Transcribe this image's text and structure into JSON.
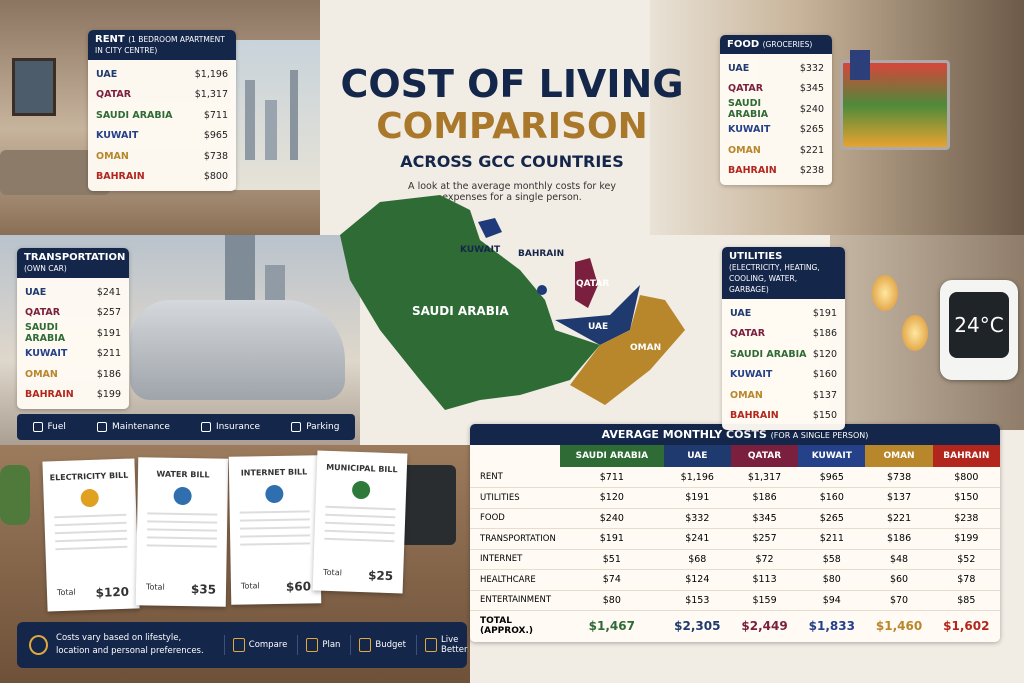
{
  "header": {
    "title": "COST OF LIVING",
    "title2": "COMPARISON",
    "subtitle": "ACROSS GCC COUNTRIES",
    "description": "A look at the average monthly costs for key expenses for a single person."
  },
  "panels": [
    {
      "title": "RENT",
      "note": "(1 BEDROOM APARTMENT IN CITY CENTRE)",
      "rows": [
        [
          "UAE",
          "$1,196"
        ],
        [
          "QATAR",
          "$1,317"
        ],
        [
          "SAUDI ARABIA",
          "$711"
        ],
        [
          "KUWAIT",
          "$965"
        ],
        [
          "OMAN",
          "$738"
        ],
        [
          "BAHRAIN",
          "$800"
        ]
      ]
    },
    {
      "title": "FOOD",
      "note": "(GROCERIES)",
      "rows": [
        [
          "UAE",
          "$332"
        ],
        [
          "QATAR",
          "$345"
        ],
        [
          "SAUDI ARABIA",
          "$240"
        ],
        [
          "KUWAIT",
          "$265"
        ],
        [
          "OMAN",
          "$221"
        ],
        [
          "BAHRAIN",
          "$238"
        ]
      ]
    },
    {
      "title": "TRANSPORTATION",
      "note": "(OWN CAR)",
      "rows": [
        [
          "UAE",
          "$241"
        ],
        [
          "QATAR",
          "$257"
        ],
        [
          "SAUDI ARABIA",
          "$191"
        ],
        [
          "KUWAIT",
          "$211"
        ],
        [
          "OMAN",
          "$186"
        ],
        [
          "BAHRAIN",
          "$199"
        ]
      ]
    },
    {
      "title": "UTILITIES",
      "note": "(ELECTRICITY, HEATING, COOLING, WATER, GARBAGE)",
      "rows": [
        [
          "UAE",
          "$191"
        ],
        [
          "QATAR",
          "$186"
        ],
        [
          "SAUDI ARABIA",
          "$120"
        ],
        [
          "KUWAIT",
          "$160"
        ],
        [
          "OMAN",
          "$137"
        ],
        [
          "BAHRAIN",
          "$150"
        ]
      ]
    }
  ],
  "transport_items": [
    "Fuel",
    "Maintenance",
    "Insurance",
    "Parking"
  ],
  "map_labels": [
    "KUWAIT",
    "BAHRAIN",
    "QATAR",
    "SAUDI ARABIA",
    "UAE",
    "OMAN"
  ],
  "thermostat": "24°C",
  "bills": [
    {
      "title": "ELECTRICITY BILL",
      "total": "Total",
      "amount": "$120"
    },
    {
      "title": "WATER BILL",
      "total": "Total",
      "amount": "$35"
    },
    {
      "title": "INTERNET BILL",
      "total": "Total",
      "amount": "$60"
    },
    {
      "title": "MUNICIPAL BILL",
      "total": "Total",
      "amount": "$25"
    }
  ],
  "footer": {
    "note": "Costs vary based on lifestyle, location and personal preferences.",
    "actions": [
      "Compare",
      "Plan",
      "Budget",
      "Live Better"
    ]
  },
  "table": {
    "title": "AVERAGE MONTHLY COSTS",
    "note": "(FOR A SINGLE PERSON)",
    "columns": [
      "SAUDI ARABIA",
      "UAE",
      "QATAR",
      "KUWAIT",
      "OMAN",
      "BAHRAIN"
    ],
    "rows": [
      {
        "label": "RENT",
        "cells": [
          "$711",
          "$1,196",
          "$1,317",
          "$965",
          "$738",
          "$800"
        ]
      },
      {
        "label": "UTILITIES",
        "cells": [
          "$120",
          "$191",
          "$186",
          "$160",
          "$137",
          "$150"
        ]
      },
      {
        "label": "FOOD",
        "cells": [
          "$240",
          "$332",
          "$345",
          "$265",
          "$221",
          "$238"
        ]
      },
      {
        "label": "TRANSPORTATION",
        "cells": [
          "$191",
          "$241",
          "$257",
          "$211",
          "$186",
          "$199"
        ]
      },
      {
        "label": "INTERNET",
        "cells": [
          "$51",
          "$68",
          "$72",
          "$58",
          "$48",
          "$52"
        ]
      },
      {
        "label": "HEALTHCARE",
        "cells": [
          "$74",
          "$124",
          "$113",
          "$80",
          "$60",
          "$78"
        ]
      },
      {
        "label": "ENTERTAINMENT",
        "cells": [
          "$80",
          "$153",
          "$159",
          "$94",
          "$70",
          "$85"
        ]
      }
    ],
    "total": {
      "label": "TOTAL (APPROX.)",
      "cells": [
        "$1,467",
        "$2,305",
        "$2,449",
        "$1,833",
        "$1,460",
        "$1,602"
      ]
    }
  }
}
